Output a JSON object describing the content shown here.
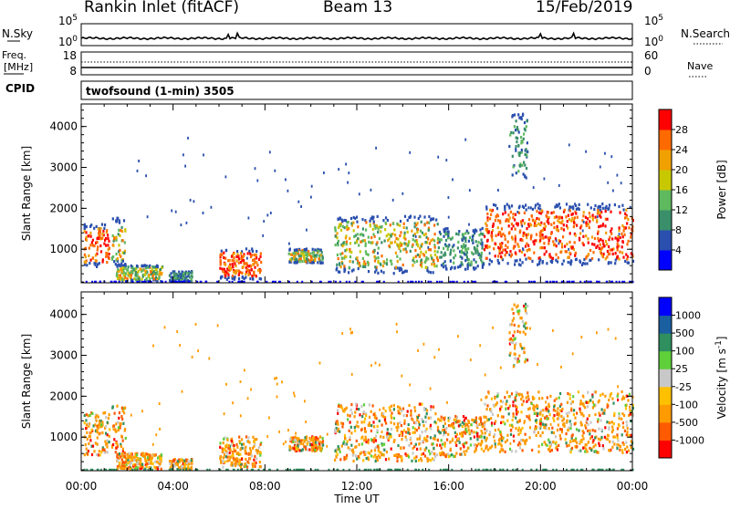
{
  "header": {
    "station": "Rankin Inlet (fitACF)",
    "beam": "Beam 13",
    "date": "15/Feb/2019"
  },
  "noise_panel": {
    "left_label": "N.Sky",
    "left_ticks": [
      "10^5",
      "10^0"
    ],
    "right_ticks": [
      "10^5",
      "10^0"
    ],
    "right_label": "N.Search"
  },
  "freq_panel": {
    "label_line1": "Freq.",
    "label_line2": "[MHz]",
    "left_ticks": [
      "18",
      "8"
    ],
    "right_ticks": [
      "60",
      "0"
    ],
    "right_label": "Nave"
  },
  "cpid_panel": {
    "label": "CPID",
    "program": "twofsound (1-min) 3505"
  },
  "colors": {
    "power_scale": [
      "#0000ff",
      "#2a4fae",
      "#3a8f6a",
      "#5fb95f",
      "#c8c800",
      "#f0a000",
      "#ff6a00",
      "#ff0000"
    ],
    "velocity_scale": [
      "#ff0000",
      "#ff5a00",
      "#ff9a00",
      "#ffc000",
      "#c8c8c8",
      "#5fcf3a",
      "#2f8f5f",
      "#1a5fa0",
      "#0000ff"
    ]
  },
  "chart_data": [
    {
      "type": "heatmap",
      "quantity": "Power",
      "ylabel": "Slant Range [km]",
      "colorbar_label": "Power [dB]",
      "colorbar_ticks": [
        "4",
        "8",
        "12",
        "16",
        "20",
        "24",
        "28"
      ],
      "y_ticks": [
        1000,
        2000,
        3000,
        4000
      ],
      "ylim": [
        180,
        4550
      ],
      "x_ticks": [
        "00:00",
        "04:00",
        "08:00",
        "12:00",
        "16:00",
        "20:00",
        "00:00"
      ],
      "xlim_hours": [
        0,
        24
      ],
      "echo_regions": [
        {
          "t": [
            0.1,
            1.2
          ],
          "r": [
            550,
            1600
          ],
          "power": "high"
        },
        {
          "t": [
            1.3,
            1.9
          ],
          "r": [
            600,
            1750
          ],
          "power": "medium"
        },
        {
          "t": [
            1.5,
            3.5
          ],
          "r": [
            200,
            600
          ],
          "power": "medium"
        },
        {
          "t": [
            3.8,
            4.8
          ],
          "r": [
            200,
            450
          ],
          "power": "low"
        },
        {
          "t": [
            6.0,
            7.8
          ],
          "r": [
            250,
            1000
          ],
          "power": "high"
        },
        {
          "t": [
            9.0,
            10.5
          ],
          "r": [
            650,
            1000
          ],
          "power": "medium"
        },
        {
          "t": [
            11.0,
            15.5
          ],
          "r": [
            400,
            1800
          ],
          "power": "medium"
        },
        {
          "t": [
            15.5,
            17.5
          ],
          "r": [
            500,
            1500
          ],
          "power": "low"
        },
        {
          "t": [
            17.5,
            24.0
          ],
          "r": [
            600,
            2100
          ],
          "power": "high"
        },
        {
          "t": [
            18.6,
            19.4
          ],
          "r": [
            2700,
            4300
          ],
          "power": "low"
        }
      ]
    },
    {
      "type": "heatmap",
      "quantity": "Velocity",
      "ylabel": "Slant Range [km]",
      "colorbar_label": "Velocity [m s^-1]",
      "colorbar_ticks": [
        "1000",
        "500",
        "100",
        "25",
        "-25",
        "-100",
        "-500",
        "-1000"
      ],
      "y_ticks": [
        1000,
        2000,
        3000,
        4000
      ],
      "ylim": [
        180,
        4550
      ],
      "x_ticks": [
        "00:00",
        "04:00",
        "08:00",
        "12:00",
        "16:00",
        "20:00",
        "00:00"
      ],
      "xlim_hours": [
        0,
        24
      ],
      "xlabel": "Time UT"
    }
  ]
}
